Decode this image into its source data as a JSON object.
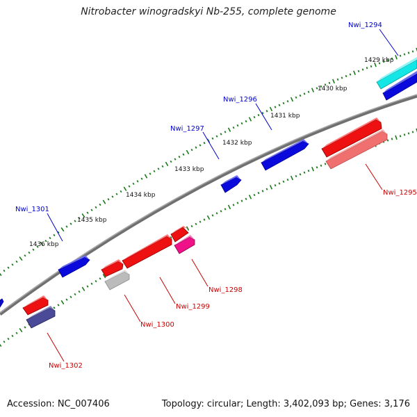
{
  "title": "Nitrobacter winogradskyi Nb-255, complete genome",
  "footer": {
    "accession": "Accession: NC_007406",
    "summary": "Topology: circular; Length: 3,402,093 bp; Genes: 3,176"
  },
  "colors": {
    "backbone": "#808080",
    "tick": "#1a7a1a",
    "forward_label": "#0000cc",
    "reverse_label": "#cc0000"
  },
  "ruler_labels": [
    "1429 kbp",
    "1430 kbp",
    "1431 kbp",
    "1432 kbp",
    "1433 kbp",
    "1434 kbp",
    "1435 kbp",
    "1436 kbp"
  ],
  "gene_labels": {
    "forward": [
      "Nwi_1294",
      "Nwi_1296",
      "Nwi_1297",
      "Nwi_1301"
    ],
    "reverse": [
      "Nwi_1295",
      "Nwi_1298",
      "Nwi_1299",
      "Nwi_1300",
      "Nwi_1302"
    ]
  },
  "gene_colors": {
    "blue": "#0a0adc",
    "cyan": "#14e6e6",
    "red": "#ee1111",
    "pink_red": "#f07070",
    "magenta": "#ee1188",
    "gray": "#bbbbbb",
    "slate": "#4a4a99"
  }
}
